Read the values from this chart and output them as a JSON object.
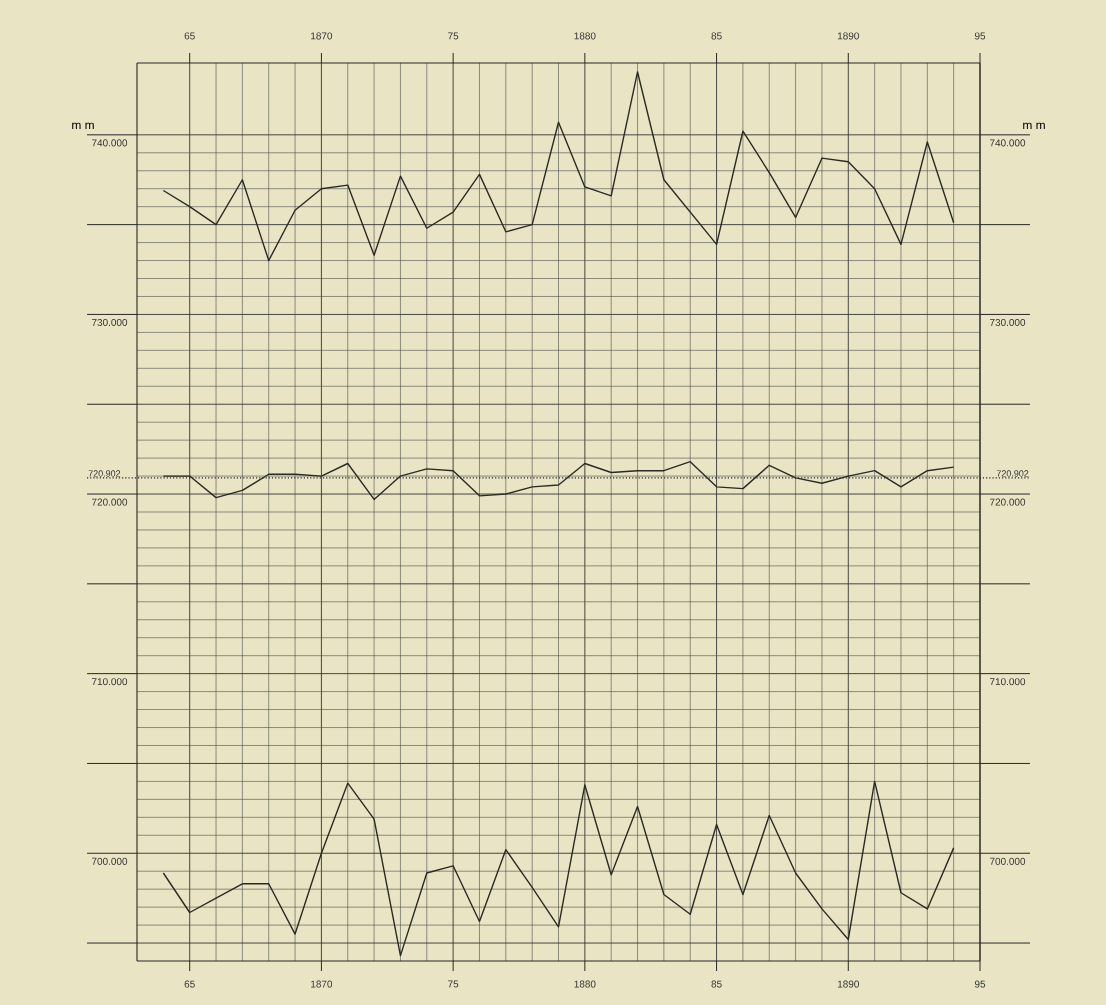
{
  "chart_data": {
    "type": "line",
    "ylabel": "m m",
    "y2label": "m m",
    "grid": true,
    "marker": "none",
    "line_style": "solid",
    "x": [
      1864,
      1865,
      1866,
      1867,
      1868,
      1869,
      1870,
      1871,
      1872,
      1873,
      1874,
      1875,
      1876,
      1877,
      1878,
      1879,
      1880,
      1881,
      1882,
      1883,
      1884,
      1885,
      1886,
      1887,
      1888,
      1889,
      1890,
      1891,
      1892,
      1893,
      1894
    ],
    "series": [
      {
        "color": "#2a2a24",
        "values": [
          736.9,
          736.0,
          735.0,
          737.5,
          733.0,
          735.8,
          737.0,
          737.2,
          733.3,
          737.7,
          734.8,
          735.7,
          737.8,
          734.6,
          735.0,
          740.7,
          737.1,
          736.6,
          743.5,
          737.5,
          735.7,
          733.9,
          740.2,
          737.9,
          735.4,
          738.7,
          738.5,
          737.0,
          733.9,
          739.6,
          735.1
        ]
      },
      {
        "color": "#2a2a24",
        "values": [
          721.0,
          721.0,
          719.8,
          720.2,
          721.1,
          721.1,
          721.0,
          721.7,
          719.7,
          721.0,
          721.4,
          721.3,
          719.9,
          720.0,
          720.4,
          720.5,
          721.7,
          721.2,
          721.3,
          721.3,
          721.8,
          720.4,
          720.3,
          721.6,
          720.9,
          720.6,
          721.0,
          721.3,
          720.4,
          721.3,
          721.5
        ]
      },
      {
        "color": "#2a2a24",
        "values": [
          698.9,
          696.7,
          697.5,
          698.3,
          698.3,
          695.5,
          700.0,
          703.9,
          701.9,
          694.3,
          698.9,
          699.3,
          696.2,
          700.2,
          698.1,
          695.9,
          703.8,
          698.8,
          702.6,
          697.7,
          696.6,
          701.6,
          697.7,
          702.1,
          698.9,
          696.9,
          695.2,
          704.0,
          697.8,
          696.9,
          700.3
        ]
      }
    ],
    "xlim": [
      1863,
      1895
    ],
    "xticks": [
      {
        "value": 1865,
        "label": "65"
      },
      {
        "value": 1870,
        "label": "1870"
      },
      {
        "value": 1875,
        "label": "75"
      },
      {
        "value": 1880,
        "label": "1880"
      },
      {
        "value": 1885,
        "label": "85"
      },
      {
        "value": 1890,
        "label": "1890"
      },
      {
        "value": 1895,
        "label": "95"
      }
    ],
    "x2lim": [
      1863,
      1895
    ],
    "x2ticks": [
      {
        "value": 1865,
        "label": "65"
      },
      {
        "value": 1870,
        "label": "1870"
      },
      {
        "value": 1875,
        "label": "75"
      },
      {
        "value": 1880,
        "label": "1880"
      },
      {
        "value": 1885,
        "label": "85"
      },
      {
        "value": 1890,
        "label": "1890"
      },
      {
        "value": 1895,
        "label": "95"
      }
    ],
    "ylim": [
      694,
      744
    ],
    "yticks": [
      {
        "value": 695,
        "label": null
      },
      {
        "value": 700,
        "label": "700.000"
      },
      {
        "value": 705,
        "label": null
      },
      {
        "value": 710,
        "label": "710.000"
      },
      {
        "value": 715,
        "label": null
      },
      {
        "value": 720,
        "label": "720.000"
      },
      {
        "value": 725,
        "label": null
      },
      {
        "value": 730,
        "label": "730.000"
      },
      {
        "value": 735,
        "label": null
      },
      {
        "value": 740,
        "label": "740.000"
      }
    ],
    "y2lim": [
      694,
      744
    ],
    "y2ticks": [
      {
        "value": 695,
        "label": null
      },
      {
        "value": 700,
        "label": "700.000"
      },
      {
        "value": 705,
        "label": null
      },
      {
        "value": 710,
        "label": "710.000"
      },
      {
        "value": 715,
        "label": null
      },
      {
        "value": 720,
        "label": "720.000"
      },
      {
        "value": 725,
        "label": null
      },
      {
        "value": 730,
        "label": "730.000"
      },
      {
        "value": 735,
        "label": null
      },
      {
        "value": 740,
        "label": "740.000"
      }
    ],
    "ref_lines": [
      {
        "axis": "y",
        "value": 720.902,
        "label": "720.902",
        "line_style": "dotted"
      }
    ]
  }
}
